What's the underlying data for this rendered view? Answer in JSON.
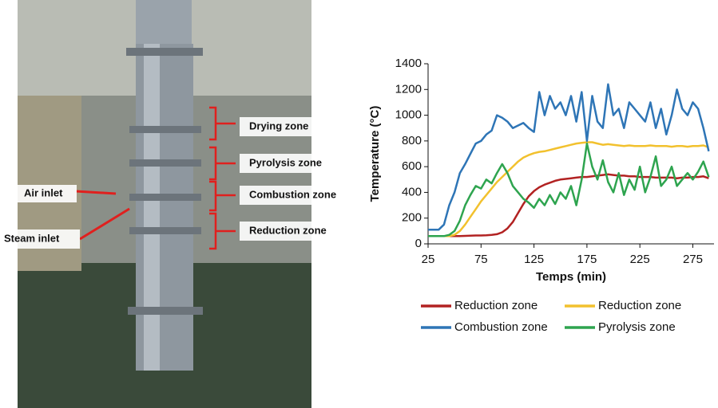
{
  "photo_labels": [
    "Drying zone",
    "Pyrolysis zone",
    "Combustion zone",
    "Reduction zone",
    "Air inlet",
    "Steam inlet"
  ],
  "chart_data": {
    "type": "line",
    "x_label": "Temps (min)",
    "y_label": "Temperature (°C)",
    "x": [
      25,
      30,
      35,
      40,
      45,
      50,
      55,
      60,
      65,
      70,
      75,
      80,
      85,
      90,
      95,
      100,
      105,
      110,
      115,
      120,
      125,
      130,
      135,
      140,
      145,
      150,
      155,
      160,
      165,
      170,
      175,
      180,
      185,
      190,
      195,
      200,
      205,
      210,
      215,
      220,
      225,
      230,
      235,
      240,
      245,
      250,
      255,
      260,
      265,
      270,
      275,
      280,
      285,
      290
    ],
    "xlim": [
      25,
      295
    ],
    "xticks": [
      25,
      75,
      125,
      175,
      225,
      275
    ],
    "ylim": [
      0,
      1400
    ],
    "yticks": [
      0,
      200,
      400,
      600,
      800,
      1000,
      1200,
      1400
    ],
    "grid": false,
    "legend": "bottom",
    "series": [
      {
        "name": "Reduction zone",
        "color": "#b22222",
        "values": [
          60,
          60,
          60,
          60,
          60,
          60,
          60,
          62,
          63,
          65,
          65,
          67,
          70,
          75,
          90,
          120,
          170,
          240,
          310,
          370,
          410,
          440,
          460,
          475,
          490,
          500,
          505,
          510,
          515,
          520,
          520,
          525,
          530,
          535,
          540,
          535,
          530,
          530,
          525,
          525,
          520,
          520,
          520,
          515,
          515,
          515,
          515,
          510,
          515,
          515,
          520,
          520,
          525,
          510
        ]
      },
      {
        "name": "Reduction zone",
        "color": "#f2c12e",
        "values": [
          60,
          60,
          60,
          60,
          60,
          70,
          100,
          150,
          210,
          270,
          330,
          380,
          430,
          480,
          520,
          560,
          600,
          640,
          670,
          690,
          705,
          715,
          720,
          730,
          740,
          750,
          760,
          770,
          780,
          785,
          790,
          790,
          780,
          770,
          775,
          770,
          765,
          760,
          765,
          760,
          760,
          760,
          765,
          760,
          760,
          760,
          755,
          760,
          760,
          755,
          760,
          760,
          765,
          750
        ]
      },
      {
        "name": "Combustion zone",
        "color": "#2e75b6",
        "values": [
          110,
          110,
          110,
          150,
          300,
          400,
          550,
          620,
          700,
          780,
          800,
          850,
          880,
          1000,
          980,
          950,
          900,
          920,
          940,
          900,
          870,
          1180,
          1000,
          1150,
          1050,
          1100,
          1000,
          1150,
          950,
          1180,
          800,
          1150,
          950,
          900,
          1240,
          1000,
          1050,
          900,
          1100,
          1050,
          1000,
          950,
          1100,
          900,
          1050,
          850,
          1000,
          1200,
          1050,
          1000,
          1100,
          1050,
          900,
          720
        ]
      },
      {
        "name": "Pyrolysis zone",
        "color": "#2ea44f",
        "values": [
          60,
          60,
          60,
          60,
          70,
          100,
          180,
          300,
          380,
          450,
          430,
          500,
          470,
          550,
          620,
          550,
          450,
          400,
          350,
          320,
          280,
          350,
          300,
          380,
          310,
          400,
          350,
          450,
          300,
          500,
          780,
          600,
          500,
          650,
          480,
          400,
          550,
          380,
          500,
          420,
          600,
          400,
          520,
          680,
          450,
          500,
          600,
          450,
          500,
          550,
          500,
          560,
          640,
          520
        ]
      }
    ]
  }
}
